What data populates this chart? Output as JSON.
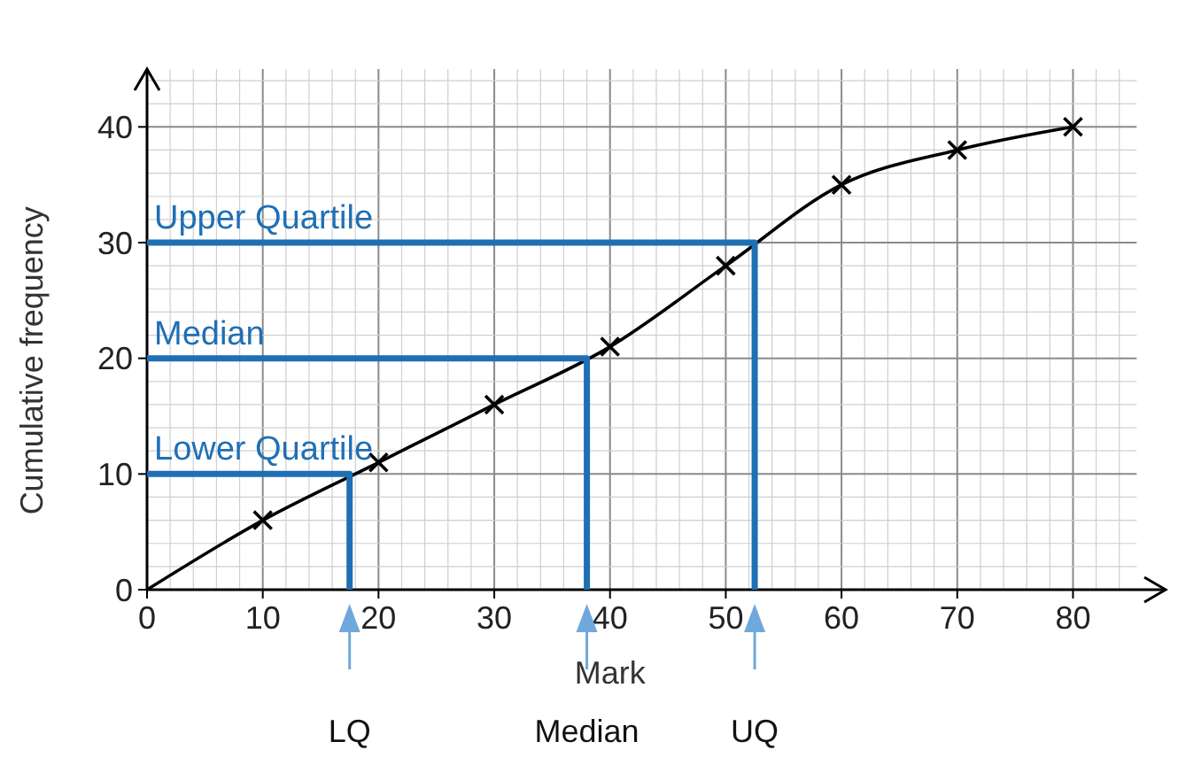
{
  "chart_data": {
    "type": "line",
    "xlabel": "Mark",
    "ylabel": "Cumulative frequency",
    "xlim": [
      0,
      88
    ],
    "ylim": [
      0,
      45
    ],
    "xticks": [
      0,
      10,
      20,
      30,
      40,
      50,
      60,
      70,
      80
    ],
    "yticks": [
      0,
      10,
      20,
      30,
      40
    ],
    "grid": true,
    "series": [
      {
        "color": "#000000",
        "marker": "none",
        "x": [
          0,
          10,
          20,
          30,
          40,
          50,
          60,
          70,
          80
        ],
        "values": [
          0,
          6,
          11,
          16,
          21,
          28,
          35,
          38,
          40
        ]
      },
      {
        "type": "scatter",
        "color": "#000000",
        "marker": "cross",
        "x": [
          10,
          20,
          30,
          40,
          50,
          60,
          70,
          80
        ],
        "values": [
          6,
          11,
          16,
          21,
          28,
          35,
          38,
          40
        ]
      },
      {
        "color": "#1f6fb5",
        "marker": "none",
        "x": [
          0,
          17.5,
          17.5
        ],
        "values": [
          10,
          10,
          0
        ]
      },
      {
        "color": "#1f6fb5",
        "marker": "none",
        "x": [
          0,
          38,
          38
        ],
        "values": [
          20,
          20,
          0
        ]
      },
      {
        "color": "#1f6fb5",
        "marker": "none",
        "x": [
          0,
          52.5,
          52.5
        ],
        "values": [
          30,
          30,
          0
        ]
      }
    ],
    "annotations": [
      "Lower Quartile",
      "Median",
      "Upper Quartile",
      "LQ",
      "Median",
      "UQ"
    ]
  }
}
